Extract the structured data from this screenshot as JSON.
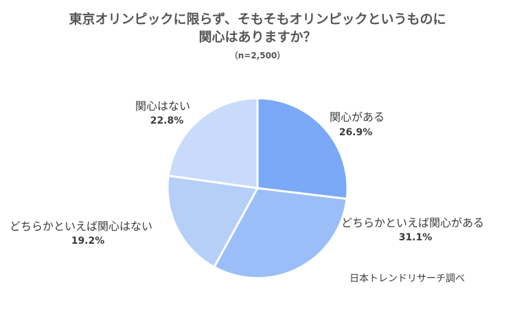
{
  "chart_data": {
    "type": "pie",
    "title_lines": [
      "東京オリンピックに限らず、そもそもオリンピックというものに",
      "関心はありますか？"
    ],
    "subtitle": "（n=2,500）",
    "slices": [
      {
        "label": "関心がある",
        "value": 26.9,
        "value_label": "26.9%",
        "color": "#7aa9f7"
      },
      {
        "label": "どちらかといえば関心がある",
        "value": 31.1,
        "value_label": "31.1%",
        "color": "#9bbef8"
      },
      {
        "label": "どちらかといえば関心はない",
        "value": 19.2,
        "value_label": "19.2%",
        "color": "#b5cff9"
      },
      {
        "label": "関心はない",
        "value": 22.8,
        "value_label": "22.8%",
        "color": "#c8dbfb"
      }
    ],
    "start_angle_deg": 0,
    "direction": "clockwise"
  },
  "source": "日本トレンドリサーチ調べ"
}
